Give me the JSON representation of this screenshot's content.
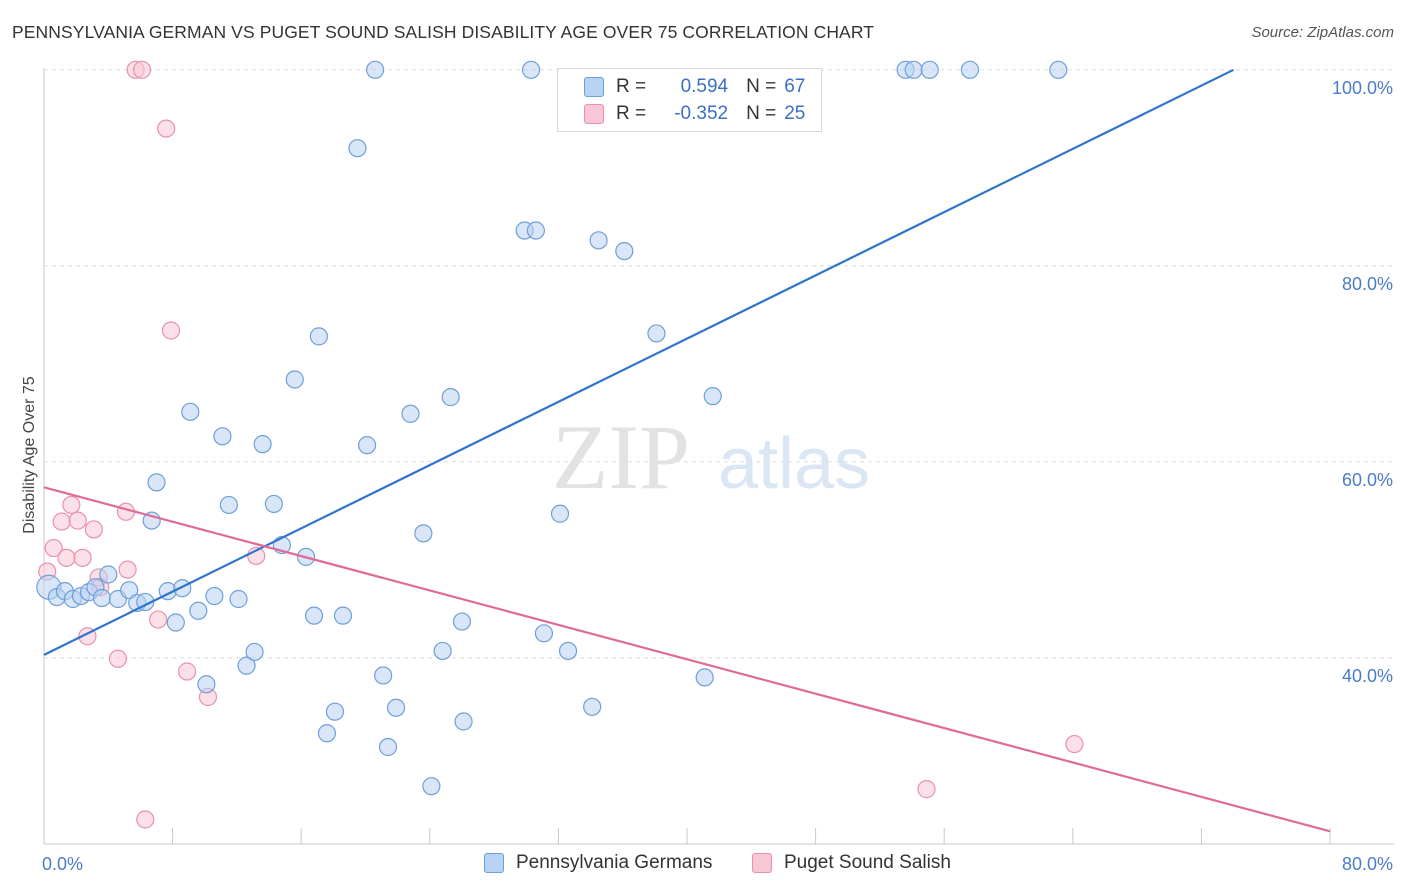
{
  "title": "PENNSYLVANIA GERMAN VS PUGET SOUND SALISH DISABILITY AGE OVER 75 CORRELATION CHART",
  "source": "Source: ZipAtlas.com",
  "watermark": {
    "zip": "ZIP",
    "atlas": "atlas"
  },
  "legend": {
    "series1": {
      "r_label": "R =",
      "r_value": "0.594",
      "n_label": "N =",
      "n_value": "67"
    },
    "series2": {
      "r_label": "R =",
      "r_value": "-0.352",
      "n_label": "N =",
      "n_value": "25"
    }
  },
  "colors": {
    "blue_fill": "#b8d2f3",
    "blue_stroke": "#6f9fd8",
    "blue_line": "#2f74cc",
    "pink_fill": "#f9c6d6",
    "pink_stroke": "#e891ad",
    "pink_line": "#e06a98",
    "grid": "#dddddd",
    "tick_text": "#4a7cc7"
  },
  "chart_data": {
    "type": "scatter",
    "title": "PENNSYLVANIA GERMAN VS PUGET SOUND SALISH DISABILITY AGE OVER 75 CORRELATION CHART",
    "xlabel": "",
    "ylabel": "Disability Age Over 75",
    "xlim": [
      0,
      80
    ],
    "ylim": [
      21,
      101
    ],
    "x_tick_labels": [
      "0.0%",
      "80.0%"
    ],
    "y_ticks": [
      40,
      60,
      80,
      100
    ],
    "y_tick_labels": [
      "40.0%",
      "60.0%",
      "80.0%",
      "100.0%"
    ],
    "grid": true,
    "series": [
      {
        "name": "Pennsylvania Germans",
        "color": "blue",
        "trend": {
          "x": [
            0,
            74
          ],
          "y": [
            40.3,
            100
          ]
        },
        "points": [
          [
            0.3,
            47.2
          ],
          [
            0.8,
            46.2
          ],
          [
            1.3,
            46.8
          ],
          [
            1.8,
            46.0
          ],
          [
            2.3,
            46.3
          ],
          [
            2.8,
            46.7
          ],
          [
            3.2,
            47.2
          ],
          [
            3.6,
            46.1
          ],
          [
            4.0,
            48.5
          ],
          [
            4.6,
            46.0
          ],
          [
            5.3,
            46.9
          ],
          [
            5.8,
            45.6
          ],
          [
            6.3,
            45.7
          ],
          [
            6.7,
            54.0
          ],
          [
            7.0,
            57.9
          ],
          [
            7.7,
            46.8
          ],
          [
            8.2,
            43.6
          ],
          [
            8.6,
            47.1
          ],
          [
            9.1,
            65.1
          ],
          [
            9.6,
            44.8
          ],
          [
            10.1,
            37.3
          ],
          [
            10.6,
            46.3
          ],
          [
            11.1,
            62.6
          ],
          [
            11.5,
            55.6
          ],
          [
            12.1,
            46.0
          ],
          [
            12.6,
            39.2
          ],
          [
            13.1,
            40.6
          ],
          [
            13.6,
            61.8
          ],
          [
            14.3,
            55.7
          ],
          [
            14.8,
            51.5
          ],
          [
            15.6,
            68.4
          ],
          [
            16.3,
            50.3
          ],
          [
            16.8,
            44.3
          ],
          [
            17.1,
            72.8
          ],
          [
            17.6,
            32.3
          ],
          [
            18.1,
            34.5
          ],
          [
            18.6,
            44.3
          ],
          [
            19.5,
            92.0
          ],
          [
            20.1,
            61.7
          ],
          [
            20.6,
            100
          ],
          [
            21.1,
            38.2
          ],
          [
            21.4,
            30.9
          ],
          [
            21.9,
            34.9
          ],
          [
            22.8,
            64.9
          ],
          [
            23.6,
            52.7
          ],
          [
            24.1,
            26.9
          ],
          [
            24.8,
            40.7
          ],
          [
            25.3,
            66.6
          ],
          [
            26.0,
            43.7
          ],
          [
            26.1,
            33.5
          ],
          [
            29.9,
            83.6
          ],
          [
            30.3,
            100
          ],
          [
            30.6,
            83.6
          ],
          [
            31.1,
            42.5
          ],
          [
            32.1,
            54.7
          ],
          [
            32.6,
            40.7
          ],
          [
            34.1,
            35.0
          ],
          [
            34.5,
            82.6
          ],
          [
            36.1,
            81.5
          ],
          [
            38.1,
            73.1
          ],
          [
            41.1,
            38.0
          ],
          [
            41.6,
            66.7
          ],
          [
            53.6,
            100
          ],
          [
            54.1,
            100
          ],
          [
            55.1,
            100
          ],
          [
            57.6,
            100
          ],
          [
            63.1,
            100
          ]
        ]
      },
      {
        "name": "Puget Sound Salish",
        "color": "pink",
        "trend": {
          "x": [
            0,
            80
          ],
          "y": [
            57.4,
            22.3
          ]
        },
        "points": [
          [
            0.2,
            48.8
          ],
          [
            0.6,
            51.2
          ],
          [
            1.1,
            53.9
          ],
          [
            1.4,
            50.2
          ],
          [
            1.7,
            55.6
          ],
          [
            2.1,
            54.0
          ],
          [
            2.4,
            50.2
          ],
          [
            2.7,
            42.2
          ],
          [
            3.1,
            53.1
          ],
          [
            3.4,
            48.2
          ],
          [
            3.5,
            47.2
          ],
          [
            4.6,
            39.9
          ],
          [
            5.1,
            54.9
          ],
          [
            5.2,
            49.0
          ],
          [
            5.7,
            100
          ],
          [
            6.1,
            100
          ],
          [
            6.3,
            23.5
          ],
          [
            7.1,
            43.9
          ],
          [
            7.6,
            94.0
          ],
          [
            7.9,
            73.4
          ],
          [
            8.9,
            38.6
          ],
          [
            10.2,
            36.0
          ],
          [
            13.2,
            50.4
          ],
          [
            54.9,
            26.6
          ],
          [
            64.1,
            31.2
          ]
        ]
      }
    ]
  },
  "bottom_legend": {
    "item1": "Pennsylvania Germans",
    "item2": "Puget Sound Salish"
  }
}
